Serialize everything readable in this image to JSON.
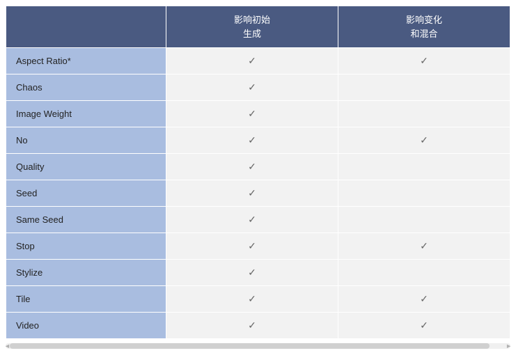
{
  "table": {
    "type": "table",
    "check_glyph": "✓",
    "colors": {
      "header_bg": "#4a5a81",
      "header_text": "#ffffff",
      "row_label_bg": "#a9bde0",
      "row_label_text": "#222222",
      "cell_bg": "#f2f2f2",
      "cell_text": "#666666",
      "border": "#ffffff"
    },
    "font": {
      "family": "Segoe UI",
      "header_size_pt": 10,
      "body_size_pt": 10
    },
    "columns": [
      {
        "label": ""
      },
      {
        "label_line1": "影响初始",
        "label_line2": "生成"
      },
      {
        "label_line1": "影响变化",
        "label_line2": "和混合"
      }
    ],
    "rows": [
      {
        "label": "Aspect Ratio*",
        "col1": true,
        "col2": true
      },
      {
        "label": "Chaos",
        "col1": true,
        "col2": false
      },
      {
        "label": "Image Weight",
        "col1": true,
        "col2": false
      },
      {
        "label": "No",
        "col1": true,
        "col2": true
      },
      {
        "label": "Quality",
        "col1": true,
        "col2": false
      },
      {
        "label": "Seed",
        "col1": true,
        "col2": false
      },
      {
        "label": "Same Seed",
        "col1": true,
        "col2": false
      },
      {
        "label": "Stop",
        "col1": true,
        "col2": true
      },
      {
        "label": "Stylize",
        "col1": true,
        "col2": false
      },
      {
        "label": "Tile",
        "col1": true,
        "col2": true
      },
      {
        "label": "Video",
        "col1": true,
        "col2": true
      }
    ]
  }
}
